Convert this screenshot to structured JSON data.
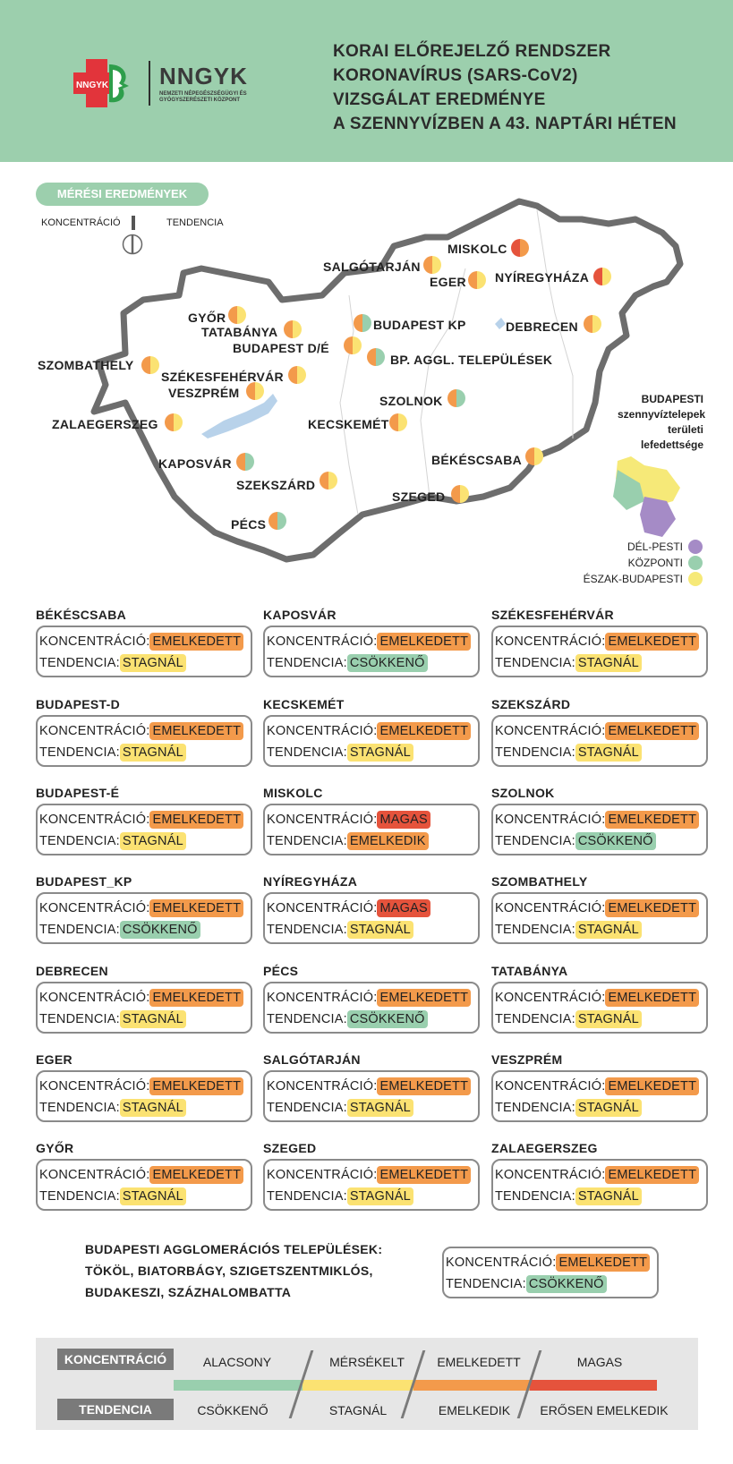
{
  "header": {
    "logo_badge": "NNGYK",
    "logo_brand": "NNGYK",
    "logo_sub": "NEMZETI NÉPEGÉSZSÉGÜGYI ÉS GYÓGYSZERÉSZETI KÖZPONT",
    "title_lines": [
      "KORAI ELŐREJELZŐ RENDSZER",
      "KORONAVÍRUS (SARS-CoV2)",
      "VIZSGÁLAT EREDMÉNYE",
      "A SZENNYVÍZBEN A 43. NAPTÁRI HÉTEN"
    ]
  },
  "map_section": {
    "pill_label": "MÉRÉSI EREDMÉNYEK",
    "key_left": "KONCENTRÁCIÓ",
    "key_right": "TENDENCIA",
    "cities": [
      {
        "name": "MISKOLC",
        "left_color": "#e5533c",
        "right_color": "#f39a4b"
      },
      {
        "name": "SALGÓTARJÁN",
        "left_color": "#f39a4b",
        "right_color": "#fbe272"
      },
      {
        "name": "EGER",
        "left_color": "#f39a4b",
        "right_color": "#fbe272"
      },
      {
        "name": "NYÍREGYHÁZA",
        "left_color": "#e5533c",
        "right_color": "#fbe272"
      },
      {
        "name": "GYŐR",
        "left_color": "#f39a4b",
        "right_color": "#fbe272"
      },
      {
        "name": "TATABÁNYA",
        "left_color": "#f39a4b",
        "right_color": "#fbe272"
      },
      {
        "name": "BUDAPEST KP",
        "left_color": "#f39a4b",
        "right_color": "#99cfae"
      },
      {
        "name": "DEBRECEN",
        "left_color": "#f39a4b",
        "right_color": "#fbe272"
      },
      {
        "name": "BUDAPEST D/É",
        "left_color": "#f39a4b",
        "right_color": "#fbe272"
      },
      {
        "name": "BP. AGGL. TELEPÜLÉSEK",
        "left_color": "#f39a4b",
        "right_color": "#99cfae"
      },
      {
        "name": "SZOMBATHELY",
        "left_color": "#f39a4b",
        "right_color": "#fbe272"
      },
      {
        "name": "SZÉKESFEHÉRVÁR",
        "left_color": "#f39a4b",
        "right_color": "#fbe272"
      },
      {
        "name": "VESZPRÉM",
        "left_color": "#f39a4b",
        "right_color": "#fbe272"
      },
      {
        "name": "SZOLNOK",
        "left_color": "#f39a4b",
        "right_color": "#99cfae"
      },
      {
        "name": "ZALAEGERSZEG",
        "left_color": "#f39a4b",
        "right_color": "#fbe272"
      },
      {
        "name": "KECSKEMÉT",
        "left_color": "#f39a4b",
        "right_color": "#fbe272"
      },
      {
        "name": "BÉKÉSCSABA",
        "left_color": "#f39a4b",
        "right_color": "#fbe272"
      },
      {
        "name": "KAPOSVÁR",
        "left_color": "#f39a4b",
        "right_color": "#99cfae"
      },
      {
        "name": "SZEKSZÁRD",
        "left_color": "#f39a4b",
        "right_color": "#fbe272"
      },
      {
        "name": "SZEGED",
        "left_color": "#f39a4b",
        "right_color": "#fbe272"
      },
      {
        "name": "PÉCS",
        "left_color": "#f39a4b",
        "right_color": "#99cfae"
      }
    ],
    "budapest_note": [
      "BUDAPESTI",
      "szennyvíztelepek",
      "területi",
      "lefedettsége"
    ],
    "budapest_legend": [
      {
        "label": "DÉL-PESTI",
        "color": "#a58bc6"
      },
      {
        "label": "KÖZPONTI",
        "color": "#99cfae"
      },
      {
        "label": "ÉSZAK-BUDAPESTI",
        "color": "#f6e978"
      }
    ]
  },
  "cards": [
    {
      "name": "BÉKÉSCSABA",
      "conc": "EMELKEDETT",
      "trend": "STAGNÁL"
    },
    {
      "name": "KAPOSVÁR",
      "conc": "EMELKEDETT",
      "trend": "CSÖKKENŐ"
    },
    {
      "name": "SZÉKESFEHÉRVÁR",
      "conc": "EMELKEDETT",
      "trend": "STAGNÁL"
    },
    {
      "name": "BUDAPEST-D",
      "conc": "EMELKEDETT",
      "trend": "STAGNÁL"
    },
    {
      "name": "KECSKEMÉT",
      "conc": "EMELKEDETT",
      "trend": "STAGNÁL"
    },
    {
      "name": "SZEKSZÁRD",
      "conc": "EMELKEDETT",
      "trend": "STAGNÁL"
    },
    {
      "name": "BUDAPEST-É",
      "conc": "EMELKEDETT",
      "trend": "STAGNÁL"
    },
    {
      "name": "MISKOLC",
      "conc": "MAGAS",
      "trend": "EMELKEDIK"
    },
    {
      "name": "SZOLNOK",
      "conc": "EMELKEDETT",
      "trend": "CSÖKKENŐ"
    },
    {
      "name": "BUDAPEST_KP",
      "conc": "EMELKEDETT",
      "trend": "CSÖKKENŐ"
    },
    {
      "name": "NYÍREGYHÁZA",
      "conc": "MAGAS",
      "trend": "STAGNÁL"
    },
    {
      "name": "SZOMBATHELY",
      "conc": "EMELKEDETT",
      "trend": "STAGNÁL"
    },
    {
      "name": "DEBRECEN",
      "conc": "EMELKEDETT",
      "trend": "STAGNÁL"
    },
    {
      "name": "PÉCS",
      "conc": "EMELKEDETT",
      "trend": "CSÖKKENŐ"
    },
    {
      "name": "TATABÁNYA",
      "conc": "EMELKEDETT",
      "trend": "STAGNÁL"
    },
    {
      "name": "EGER",
      "conc": "EMELKEDETT",
      "trend": "STAGNÁL"
    },
    {
      "name": "SALGÓTARJÁN",
      "conc": "EMELKEDETT",
      "trend": "STAGNÁL"
    },
    {
      "name": "VESZPRÉM",
      "conc": "EMELKEDETT",
      "trend": "STAGNÁL"
    },
    {
      "name": "GYŐR",
      "conc": "EMELKEDETT",
      "trend": "STAGNÁL"
    },
    {
      "name": "SZEGED",
      "conc": "EMELKEDETT",
      "trend": "STAGNÁL"
    },
    {
      "name": "ZALAEGERSZEG",
      "conc": "EMELKEDETT",
      "trend": "STAGNÁL"
    }
  ],
  "labels": {
    "conc": "KONCENTRÁCIÓ:",
    "trend": "TENDENCIA:"
  },
  "agglomeration": {
    "lines": [
      "BUDAPESTI AGGLOMERÁCIÓS TELEPÜLÉSEK:",
      "TÖKÖL, BIATORBÁGY, SZIGETSZENTMIKLÓS,",
      "BUDAKESZI, SZÁZHALOMBATTA"
    ],
    "conc": "EMELKEDETT",
    "trend": "CSÖKKENŐ"
  },
  "scale": {
    "conc_label": "KONCENTRÁCIÓ",
    "trend_label": "TENDENCIA",
    "conc_levels": [
      "ALACSONY",
      "MÉRSÉKELT",
      "EMELKEDETT",
      "MAGAS"
    ],
    "trend_levels": [
      "CSÖKKENŐ",
      "STAGNÁL",
      "EMELKEDIK",
      "ERŐSEN EMELKEDIK"
    ],
    "colors": [
      "#99cfae",
      "#fbe272",
      "#f39a4b",
      "#e5533c"
    ]
  }
}
